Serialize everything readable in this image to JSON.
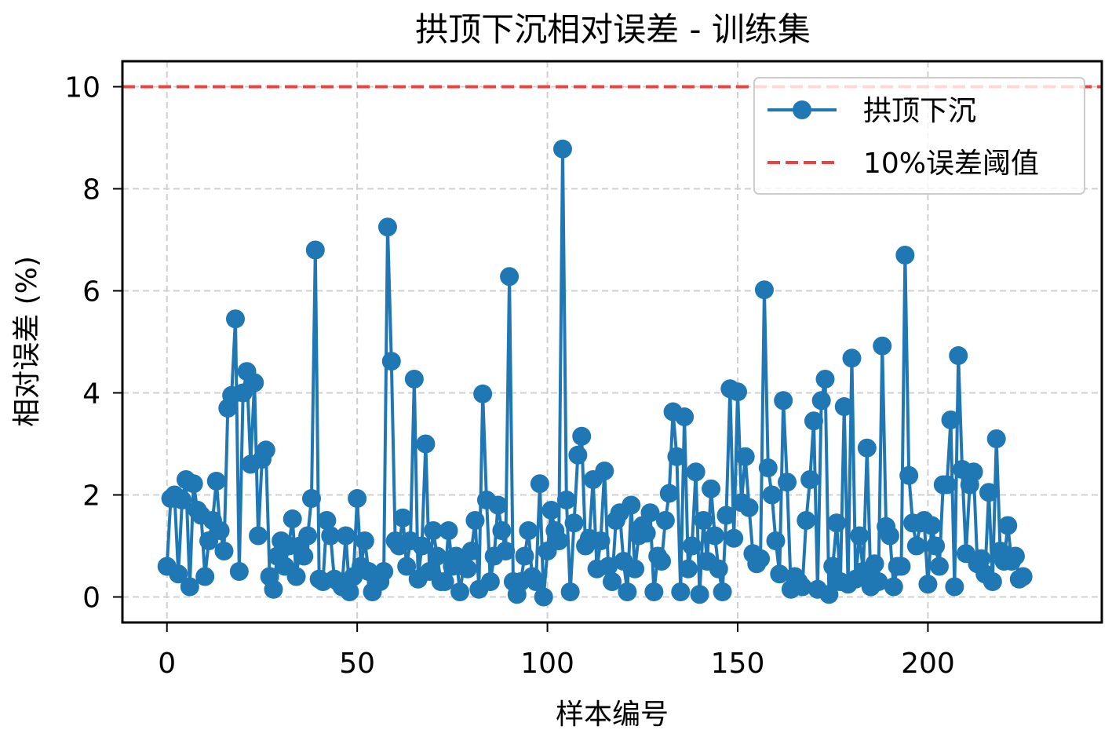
{
  "chart_data": {
    "type": "line",
    "title": "拱顶下沉相对误差 - 训练集",
    "xlabel": "样本编号",
    "ylabel": "相对误差 (%)",
    "xlim": [
      -11.7,
      245.7
    ],
    "ylim": [
      -0.5,
      10.5
    ],
    "xticks": [
      0,
      50,
      100,
      150,
      200
    ],
    "yticks": [
      0,
      2,
      4,
      6,
      8,
      10
    ],
    "grid": true,
    "legend_position": "top-right",
    "colors": {
      "series": "#1f77b4",
      "threshold": "#f04040"
    },
    "series": [
      {
        "name": "拱顶下沉",
        "style": "line-marker",
        "values": [
          0.6,
          1.93,
          2.0,
          0.45,
          1.9,
          2.3,
          0.2,
          2.22,
          1.7,
          1.6,
          0.4,
          1.1,
          1.5,
          2.27,
          1.3,
          0.9,
          3.7,
          3.95,
          5.45,
          0.5,
          4.0,
          4.42,
          2.6,
          4.2,
          1.2,
          2.7,
          2.88,
          0.4,
          0.15,
          0.8,
          1.1,
          0.6,
          1.0,
          1.53,
          0.4,
          1.0,
          0.8,
          1.2,
          1.93,
          6.8,
          0.35,
          0.3,
          1.5,
          1.2,
          0.35,
          0.3,
          0.2,
          1.2,
          0.1,
          0.4,
          1.93,
          0.6,
          1.1,
          0.5,
          0.1,
          0.3,
          0.3,
          0.5,
          7.25,
          4.62,
          1.1,
          1.0,
          1.55,
          0.6,
          1.1,
          4.27,
          0.35,
          1.0,
          3.0,
          0.5,
          1.3,
          0.8,
          0.3,
          0.3,
          1.3,
          0.6,
          0.8,
          0.1,
          0.6,
          0.55,
          0.9,
          1.5,
          0.15,
          3.98,
          1.9,
          0.3,
          0.8,
          1.8,
          1.3,
          0.9,
          6.28,
          0.3,
          0.05,
          0.3,
          0.8,
          1.3,
          0.4,
          0.3,
          2.22,
          0.0,
          0.9,
          1.7,
          1.3,
          1.1,
          8.78,
          1.9,
          0.1,
          1.45,
          2.78,
          3.15,
          1.0,
          1.15,
          2.3,
          0.55,
          1.1,
          2.47,
          0.6,
          0.3,
          1.5,
          1.65,
          0.7,
          0.1,
          1.8,
          0.55,
          1.2,
          1.4,
          1.25,
          1.65,
          0.1,
          0.8,
          0.7,
          1.5,
          2.03,
          3.63,
          2.75,
          0.1,
          3.53,
          0.55,
          1.0,
          2.45,
          0.05,
          1.5,
          0.7,
          2.12,
          1.2,
          0.55,
          0.1,
          1.6,
          4.08,
          1.15,
          4.02,
          1.85,
          2.75,
          1.75,
          0.85,
          0.65,
          0.75,
          6.02,
          2.53,
          2.0,
          1.1,
          0.45,
          3.85,
          2.25,
          0.15,
          0.4,
          0.3,
          0.2,
          1.5,
          2.3,
          3.45,
          0.15,
          3.85,
          4.27,
          0.05,
          0.6,
          1.45,
          0.3,
          3.73,
          0.25,
          4.68,
          0.35,
          1.2,
          0.5,
          2.92,
          0.2,
          0.65,
          0.3,
          4.92,
          1.38,
          1.2,
          0.2,
          0.6,
          0.6,
          6.7,
          2.38,
          1.45,
          1.0,
          1.45,
          1.5,
          0.25,
          1.4,
          1.0,
          0.6,
          2.2,
          2.2,
          3.47,
          0.2,
          4.73,
          2.5,
          0.85,
          2.2,
          2.45,
          0.65,
          0.75,
          0.45,
          2.05,
          0.3,
          3.1,
          0.9,
          0.7,
          1.4,
          0.7,
          0.8,
          0.35,
          0.4
        ]
      },
      {
        "name": "10%误差阈值",
        "style": "dashed-line",
        "y": 10
      }
    ]
  }
}
